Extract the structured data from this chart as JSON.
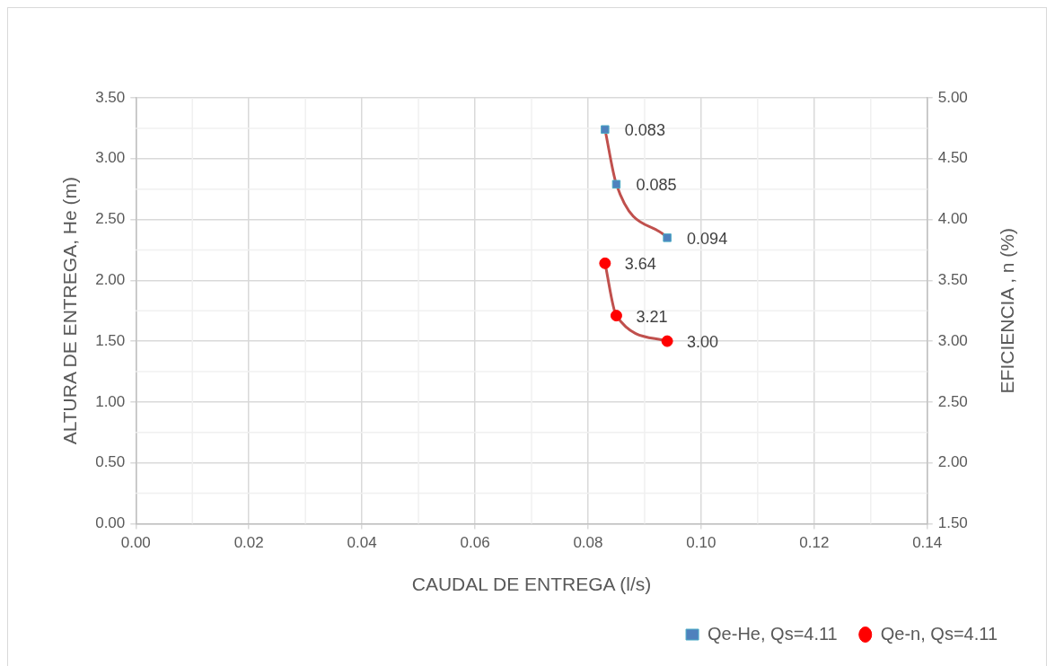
{
  "chart_data": {
    "type": "line",
    "xlabel": "CAUDAL DE ENTREGA (l/s)",
    "ylabel": "ALTURA DE ENTREGA, He (m)",
    "y2label": "EFICIENCIA , n (%)",
    "xlim": [
      0,
      0.14
    ],
    "xticks": [
      {
        "value": 0,
        "label": "0.00"
      },
      {
        "value": 0.02,
        "label": "0.02"
      },
      {
        "value": 0.04,
        "label": "0.04"
      },
      {
        "value": 0.06,
        "label": "0.06"
      },
      {
        "value": 0.08,
        "label": "0.08"
      },
      {
        "value": 0.1,
        "label": "0.10"
      },
      {
        "value": 0.12,
        "label": "0.12"
      },
      {
        "value": 0.14,
        "label": "0.14"
      }
    ],
    "ylim": [
      0,
      3.5
    ],
    "yticks": [
      {
        "value": 0,
        "label": "0.00"
      },
      {
        "value": 0.5,
        "label": "0.50"
      },
      {
        "value": 1,
        "label": "1.00"
      },
      {
        "value": 1.5,
        "label": "1.50"
      },
      {
        "value": 2,
        "label": "2.00"
      },
      {
        "value": 2.5,
        "label": "2.50"
      },
      {
        "value": 3,
        "label": "3.00"
      },
      {
        "value": 3.5,
        "label": "3.50"
      }
    ],
    "y2lim": [
      1.5,
      5
    ],
    "y2ticks": [
      {
        "value": 1.5,
        "label": "1.50"
      },
      {
        "value": 2,
        "label": "2.00"
      },
      {
        "value": 2.5,
        "label": "2.50"
      },
      {
        "value": 3,
        "label": "3.00"
      },
      {
        "value": 3.5,
        "label": "3.50"
      },
      {
        "value": 4,
        "label": "4.00"
      },
      {
        "value": 4.5,
        "label": "4.50"
      },
      {
        "value": 5,
        "label": "5.00"
      }
    ],
    "grid": true,
    "legend": "bottom right",
    "annotations": [
      {
        "text": "0.083",
        "x": 0.083,
        "y": 3.24
      },
      {
        "text": "0.085",
        "x": 0.085,
        "y": 2.79
      },
      {
        "text": "0.094",
        "x": 0.094,
        "y": 2.35
      }
    ],
    "series": [
      {
        "name": "Qe-He, Qs=4.11",
        "color": "#4f81bd",
        "marker": "square",
        "x": [
          0.083,
          0.085,
          0.094
        ],
        "values": [
          3.24,
          2.79,
          2.35
        ]
      },
      {
        "name": "Qe-n, Qs=4.11",
        "color": "#ff0000",
        "marker": "circle",
        "axis": "y2",
        "x": [
          0.083,
          0.085,
          0.094
        ],
        "values": [
          3.64,
          3.21,
          3.0
        ],
        "value_labels": [
          "3.64",
          "3.21",
          "3.00"
        ]
      }
    ]
  }
}
